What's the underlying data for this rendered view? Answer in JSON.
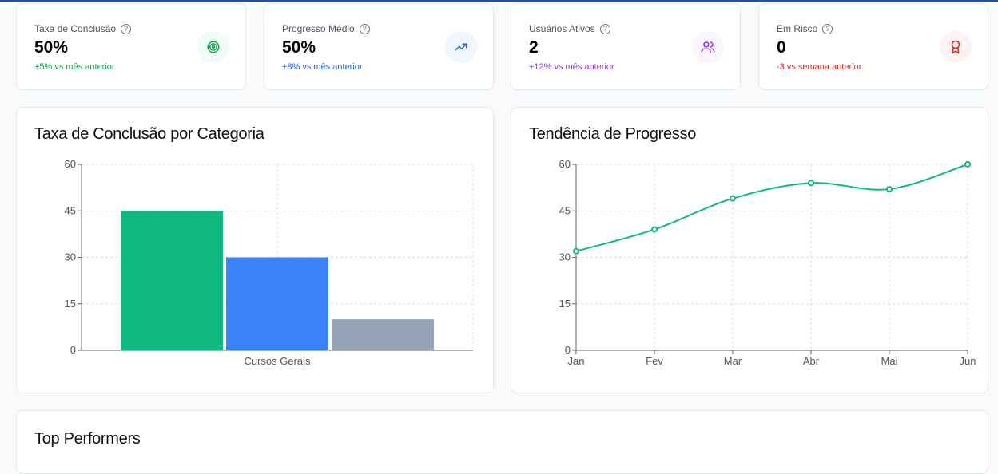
{
  "kpis": [
    {
      "label": "Taxa de Conclusão",
      "value": "50%",
      "delta": "+5% vs mês anterior",
      "color": "#16a34a",
      "bg": "#f0fdf4",
      "icon": "target-icon"
    },
    {
      "label": "Progresso Médio",
      "value": "50%",
      "delta": "+8% vs mês anterior",
      "color": "#2563eb",
      "bg": "#eff6ff",
      "icon": "trending-up-icon"
    },
    {
      "label": "Usuários Ativos",
      "value": "2",
      "delta": "+12% vs mês anterior",
      "color": "#9333ea",
      "bg": "#faf5ff",
      "icon": "users-icon"
    },
    {
      "label": "Em Risco",
      "value": "0",
      "delta": "-3 vs semana anterior",
      "color": "#dc2626",
      "bg": "#fef2f2",
      "icon": "award-icon"
    }
  ],
  "top_performers_title": "Top Performers",
  "chart_data": [
    {
      "type": "bar",
      "title": "Taxa de Conclusão por Categoria",
      "categories": [
        "Cursos Gerais"
      ],
      "series": [
        {
          "name": "s1",
          "values": [
            45
          ],
          "color": "#10b981"
        },
        {
          "name": "s2",
          "values": [
            30
          ],
          "color": "#3b82f6"
        },
        {
          "name": "s3",
          "values": [
            10
          ],
          "color": "#94a3b8"
        }
      ],
      "yticks": [
        0,
        15,
        30,
        45,
        60
      ],
      "ylim": [
        0,
        60
      ],
      "grid": true
    },
    {
      "type": "line",
      "title": "Tendência de Progresso",
      "x": [
        "Jan",
        "Fev",
        "Mar",
        "Abr",
        "Mai",
        "Jun"
      ],
      "series": [
        {
          "name": "progresso",
          "values": [
            32,
            39,
            49,
            54,
            52,
            60
          ],
          "color": "#10b981"
        }
      ],
      "yticks": [
        0,
        15,
        30,
        45,
        60
      ],
      "ylim": [
        0,
        60
      ],
      "grid": true
    }
  ]
}
